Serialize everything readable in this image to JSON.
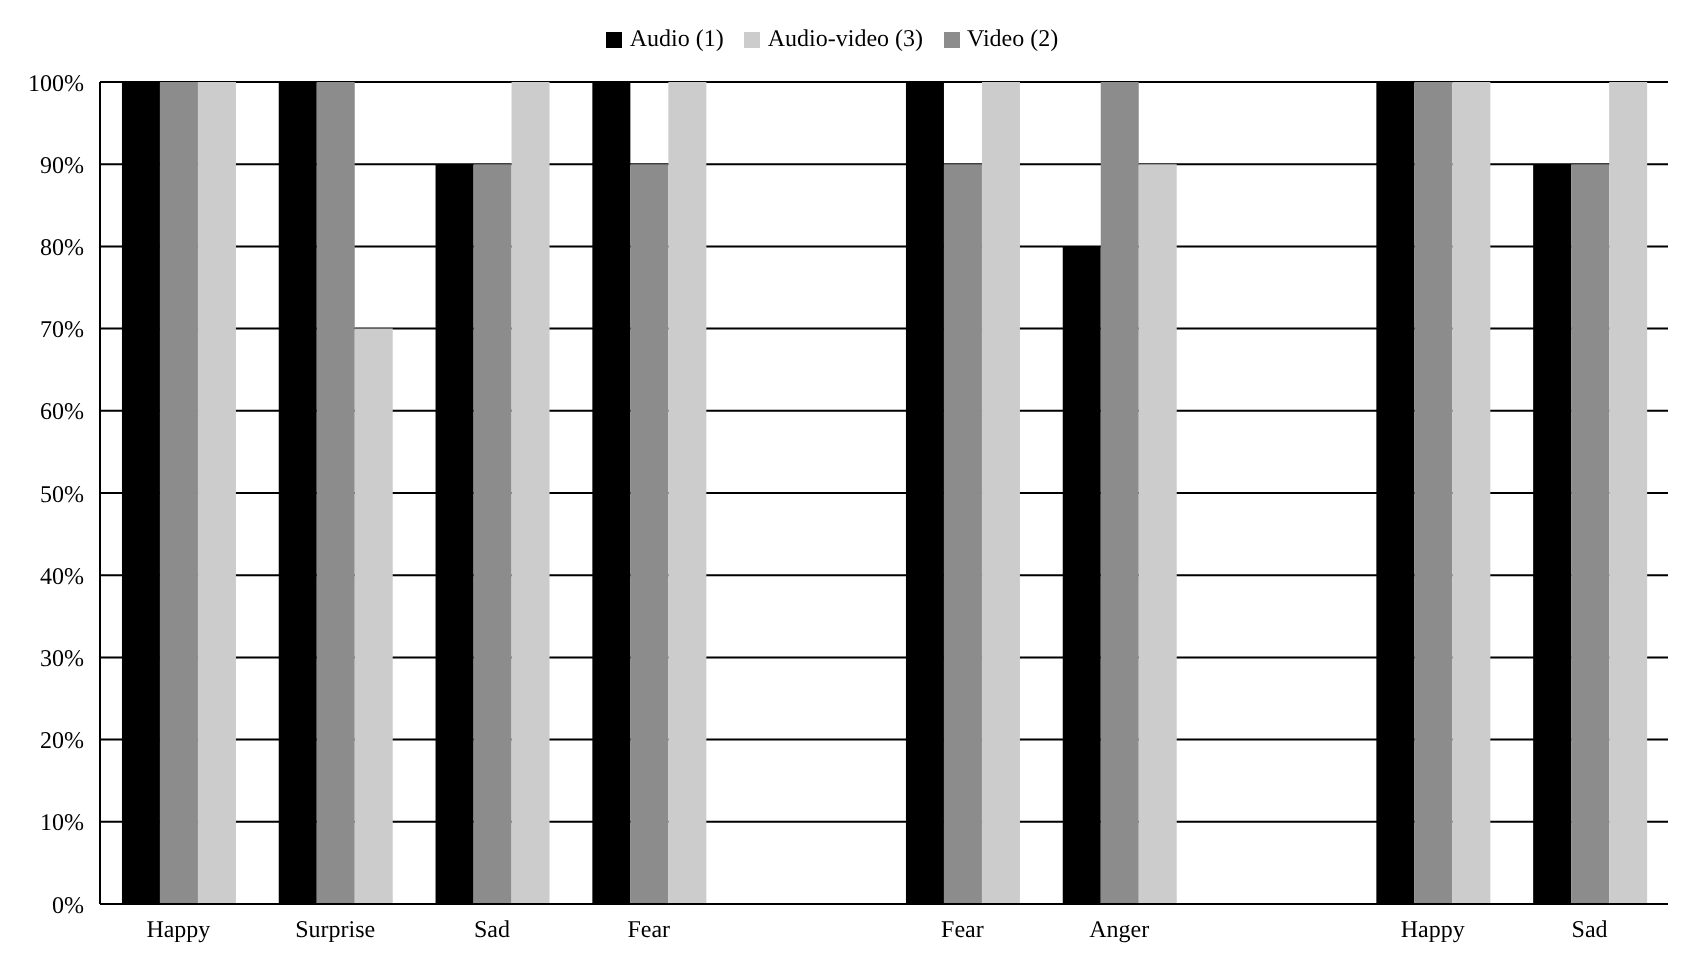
{
  "chart_data": {
    "type": "bar",
    "categories": [
      "Happy",
      "Surprise",
      "Sad",
      "Fear",
      null,
      "Fear",
      "Anger",
      null,
      "Happy",
      "Sad"
    ],
    "series": [
      {
        "name": "Audio (1)",
        "color": "#000000",
        "values": [
          100,
          100,
          90,
          100,
          null,
          100,
          80,
          null,
          100,
          90
        ]
      },
      {
        "name": "Video (2)",
        "color": "#8c8c8c",
        "values": [
          100,
          100,
          90,
          90,
          null,
          90,
          100,
          null,
          100,
          90
        ]
      },
      {
        "name": "Audio-video (3)",
        "color": "#cccccc",
        "values": [
          100,
          70,
          100,
          100,
          null,
          100,
          90,
          null,
          100,
          100
        ]
      }
    ],
    "ylim": [
      0,
      100
    ],
    "yticks": [
      {
        "value": 0,
        "label": "0%"
      },
      {
        "value": 10,
        "label": "10%"
      },
      {
        "value": 20,
        "label": "20%"
      },
      {
        "value": 30,
        "label": "30%"
      },
      {
        "value": 40,
        "label": "40%"
      },
      {
        "value": 50,
        "label": "50%"
      },
      {
        "value": 60,
        "label": "60%"
      },
      {
        "value": 70,
        "label": "70%"
      },
      {
        "value": 80,
        "label": "80%"
      },
      {
        "value": 90,
        "label": "90%"
      },
      {
        "value": 100,
        "label": "100%"
      }
    ],
    "grid": "y",
    "legend": "top"
  }
}
